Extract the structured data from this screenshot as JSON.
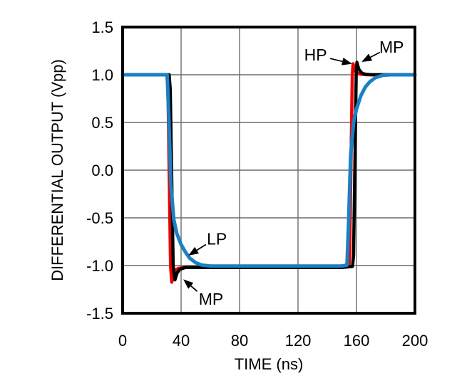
{
  "figure": {
    "background_color": "#ffffff",
    "frame_color": "#000000",
    "grid_color": "#6b6b6b",
    "text_color": "#000000"
  },
  "chart_data": {
    "type": "line",
    "title": "",
    "xlabel": "TIME (ns)",
    "ylabel": "DIFFERENTIAL OUTPUT (Vpp)",
    "xlim": [
      0,
      200
    ],
    "ylim": [
      -1.5,
      1.5
    ],
    "grid": true,
    "legend_position": "none",
    "xticks": {
      "values": [
        0,
        40,
        80,
        120,
        160,
        200
      ],
      "labels": [
        "0",
        "40",
        "80",
        "120",
        "160",
        "200"
      ]
    },
    "yticks": {
      "values": [
        -1.5,
        -1.0,
        -0.5,
        0.0,
        0.5,
        1.0,
        1.5
      ],
      "labels": [
        "-1.5",
        "-1.0",
        "-0.5",
        "0.0",
        "0.5",
        "1.0",
        "1.5"
      ]
    },
    "series": [
      {
        "name": "HP",
        "color": "#ee0000",
        "width": 4.5,
        "points": [
          [
            0,
            1.0
          ],
          [
            30.3,
            1.0
          ],
          [
            31,
            0.85
          ],
          [
            32.8,
            -1.0
          ],
          [
            33.6,
            -1.175
          ],
          [
            34.6,
            -1.11
          ],
          [
            36,
            -1.05
          ],
          [
            38,
            -1.03
          ],
          [
            42,
            -1.02
          ],
          [
            150,
            -1.02
          ],
          [
            154.8,
            -1.01
          ],
          [
            155.3,
            -0.9
          ],
          [
            157.1,
            1.0
          ],
          [
            157.7,
            1.115
          ],
          [
            158.6,
            1.05
          ],
          [
            160,
            1.02
          ],
          [
            163,
            1.005
          ],
          [
            167,
            1.0
          ],
          [
            200,
            1.0
          ]
        ]
      },
      {
        "name": "MP",
        "color": "#000000",
        "width": 4.5,
        "points": [
          [
            0,
            1.0
          ],
          [
            31.8,
            1.0
          ],
          [
            32.6,
            0.85
          ],
          [
            34.6,
            -1.0
          ],
          [
            35.8,
            -1.15
          ],
          [
            37.2,
            -1.08
          ],
          [
            39,
            -1.04
          ],
          [
            43,
            -1.02
          ],
          [
            150,
            -1.02
          ],
          [
            157.2,
            -1.01
          ],
          [
            158,
            -0.9
          ],
          [
            159.8,
            1.0
          ],
          [
            160.3,
            1.13
          ],
          [
            161.5,
            1.06
          ],
          [
            163.5,
            1.02
          ],
          [
            166,
            1.005
          ],
          [
            170,
            1.0
          ],
          [
            200,
            1.0
          ]
        ]
      },
      {
        "name": "LP",
        "color": "#1b80c4",
        "width": 5,
        "points": [
          [
            0,
            1.0
          ],
          [
            30.5,
            1.0
          ],
          [
            31.5,
            0.6
          ],
          [
            33,
            -0.15
          ],
          [
            35,
            -0.52
          ],
          [
            37,
            -0.66
          ],
          [
            40,
            -0.78
          ],
          [
            43,
            -0.86
          ],
          [
            46,
            -0.925
          ],
          [
            50,
            -0.97
          ],
          [
            54,
            -0.995
          ],
          [
            60,
            -1.005
          ],
          [
            150,
            -1.005
          ],
          [
            153.5,
            -0.995
          ],
          [
            154.5,
            -0.6
          ],
          [
            156,
            0.15
          ],
          [
            158,
            0.5
          ],
          [
            160,
            0.64
          ],
          [
            163,
            0.78
          ],
          [
            166,
            0.87
          ],
          [
            169,
            0.925
          ],
          [
            173,
            0.97
          ],
          [
            178,
            0.995
          ],
          [
            183,
            1.0
          ],
          [
            200,
            1.0
          ]
        ]
      }
    ],
    "annotations": [
      {
        "text": "HP",
        "label_x": 132,
        "label_y": 1.21,
        "tail_x": 142,
        "tail_y": 1.17,
        "head_x": 157,
        "head_y": 1.115
      },
      {
        "text": "MP",
        "label_x": 184,
        "label_y": 1.29,
        "tail_x": 176,
        "tail_y": 1.235,
        "head_x": 163.5,
        "head_y": 1.135
      },
      {
        "text": "LP",
        "label_x": 64.5,
        "label_y": -0.72,
        "tail_x": 57,
        "tail_y": -0.78,
        "head_x": 45,
        "head_y": -0.895
      },
      {
        "text": "MP",
        "label_x": 60.5,
        "label_y": -1.35,
        "tail_x": 51,
        "tail_y": -1.27,
        "head_x": 41.5,
        "head_y": -1.145
      }
    ]
  }
}
